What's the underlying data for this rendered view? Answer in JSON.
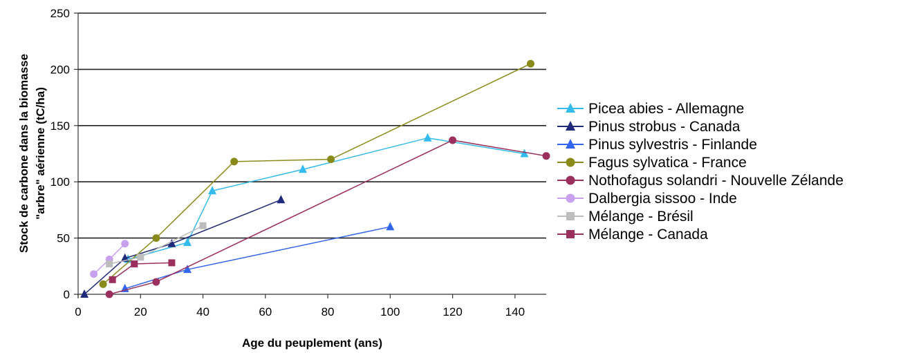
{
  "chart_data": {
    "type": "line",
    "xlabel": "Age du peuplement (ans)",
    "ylabel": [
      "Stock de carbone dans la biomasse",
      "\"arbre\" aérienne (tC/ha)"
    ],
    "xlim": [
      0,
      150
    ],
    "ylim": [
      0,
      250
    ],
    "xticks": [
      0,
      20,
      40,
      60,
      80,
      100,
      120,
      140
    ],
    "yticks": [
      0,
      50,
      100,
      150,
      200,
      250
    ],
    "grid": "horizontal",
    "legend": "right",
    "series": [
      {
        "name": "Picea abies - Allemagne",
        "color": "#33bbee",
        "marker": "triangle",
        "points": [
          [
            16,
            31
          ],
          [
            35,
            46
          ],
          [
            43,
            92
          ],
          [
            72,
            111
          ],
          [
            112,
            139
          ],
          [
            143,
            125
          ]
        ]
      },
      {
        "name": "Pinus strobus - Canada",
        "color": "#1f2a7a",
        "marker": "triangle",
        "points": [
          [
            2,
            0
          ],
          [
            15,
            32
          ],
          [
            30,
            45
          ],
          [
            65,
            84
          ]
        ]
      },
      {
        "name": "Pinus sylvestris - Finlande",
        "color": "#3366ee",
        "marker": "triangle",
        "points": [
          [
            15,
            5
          ],
          [
            35,
            22
          ],
          [
            100,
            60
          ]
        ]
      },
      {
        "name": "Fagus sylvatica - France",
        "color": "#8a8a1a",
        "marker": "circle",
        "points": [
          [
            8,
            9
          ],
          [
            25,
            50
          ],
          [
            50,
            118
          ],
          [
            81,
            120
          ],
          [
            145,
            205
          ]
        ]
      },
      {
        "name": "Nothofagus solandri - Nouvelle Zélande",
        "color": "#9b2f5e",
        "marker": "circle",
        "points": [
          [
            10,
            0
          ],
          [
            25,
            11
          ],
          [
            120,
            137
          ],
          [
            150,
            123
          ]
        ]
      },
      {
        "name": "Dalbergia sissoo - Inde",
        "color": "#c8a0ee",
        "marker": "circle",
        "points": [
          [
            5,
            18
          ],
          [
            10,
            31
          ],
          [
            15,
            45
          ]
        ]
      },
      {
        "name": "Mélange - Brésil",
        "color": "#bdbdbd",
        "marker": "square",
        "points": [
          [
            10,
            27
          ],
          [
            20,
            33
          ],
          [
            40,
            61
          ]
        ]
      },
      {
        "name": "Mélange - Canada",
        "color": "#9b2f5e",
        "marker": "square",
        "points": [
          [
            11,
            13
          ],
          [
            18,
            27
          ],
          [
            30,
            28
          ]
        ]
      }
    ]
  }
}
